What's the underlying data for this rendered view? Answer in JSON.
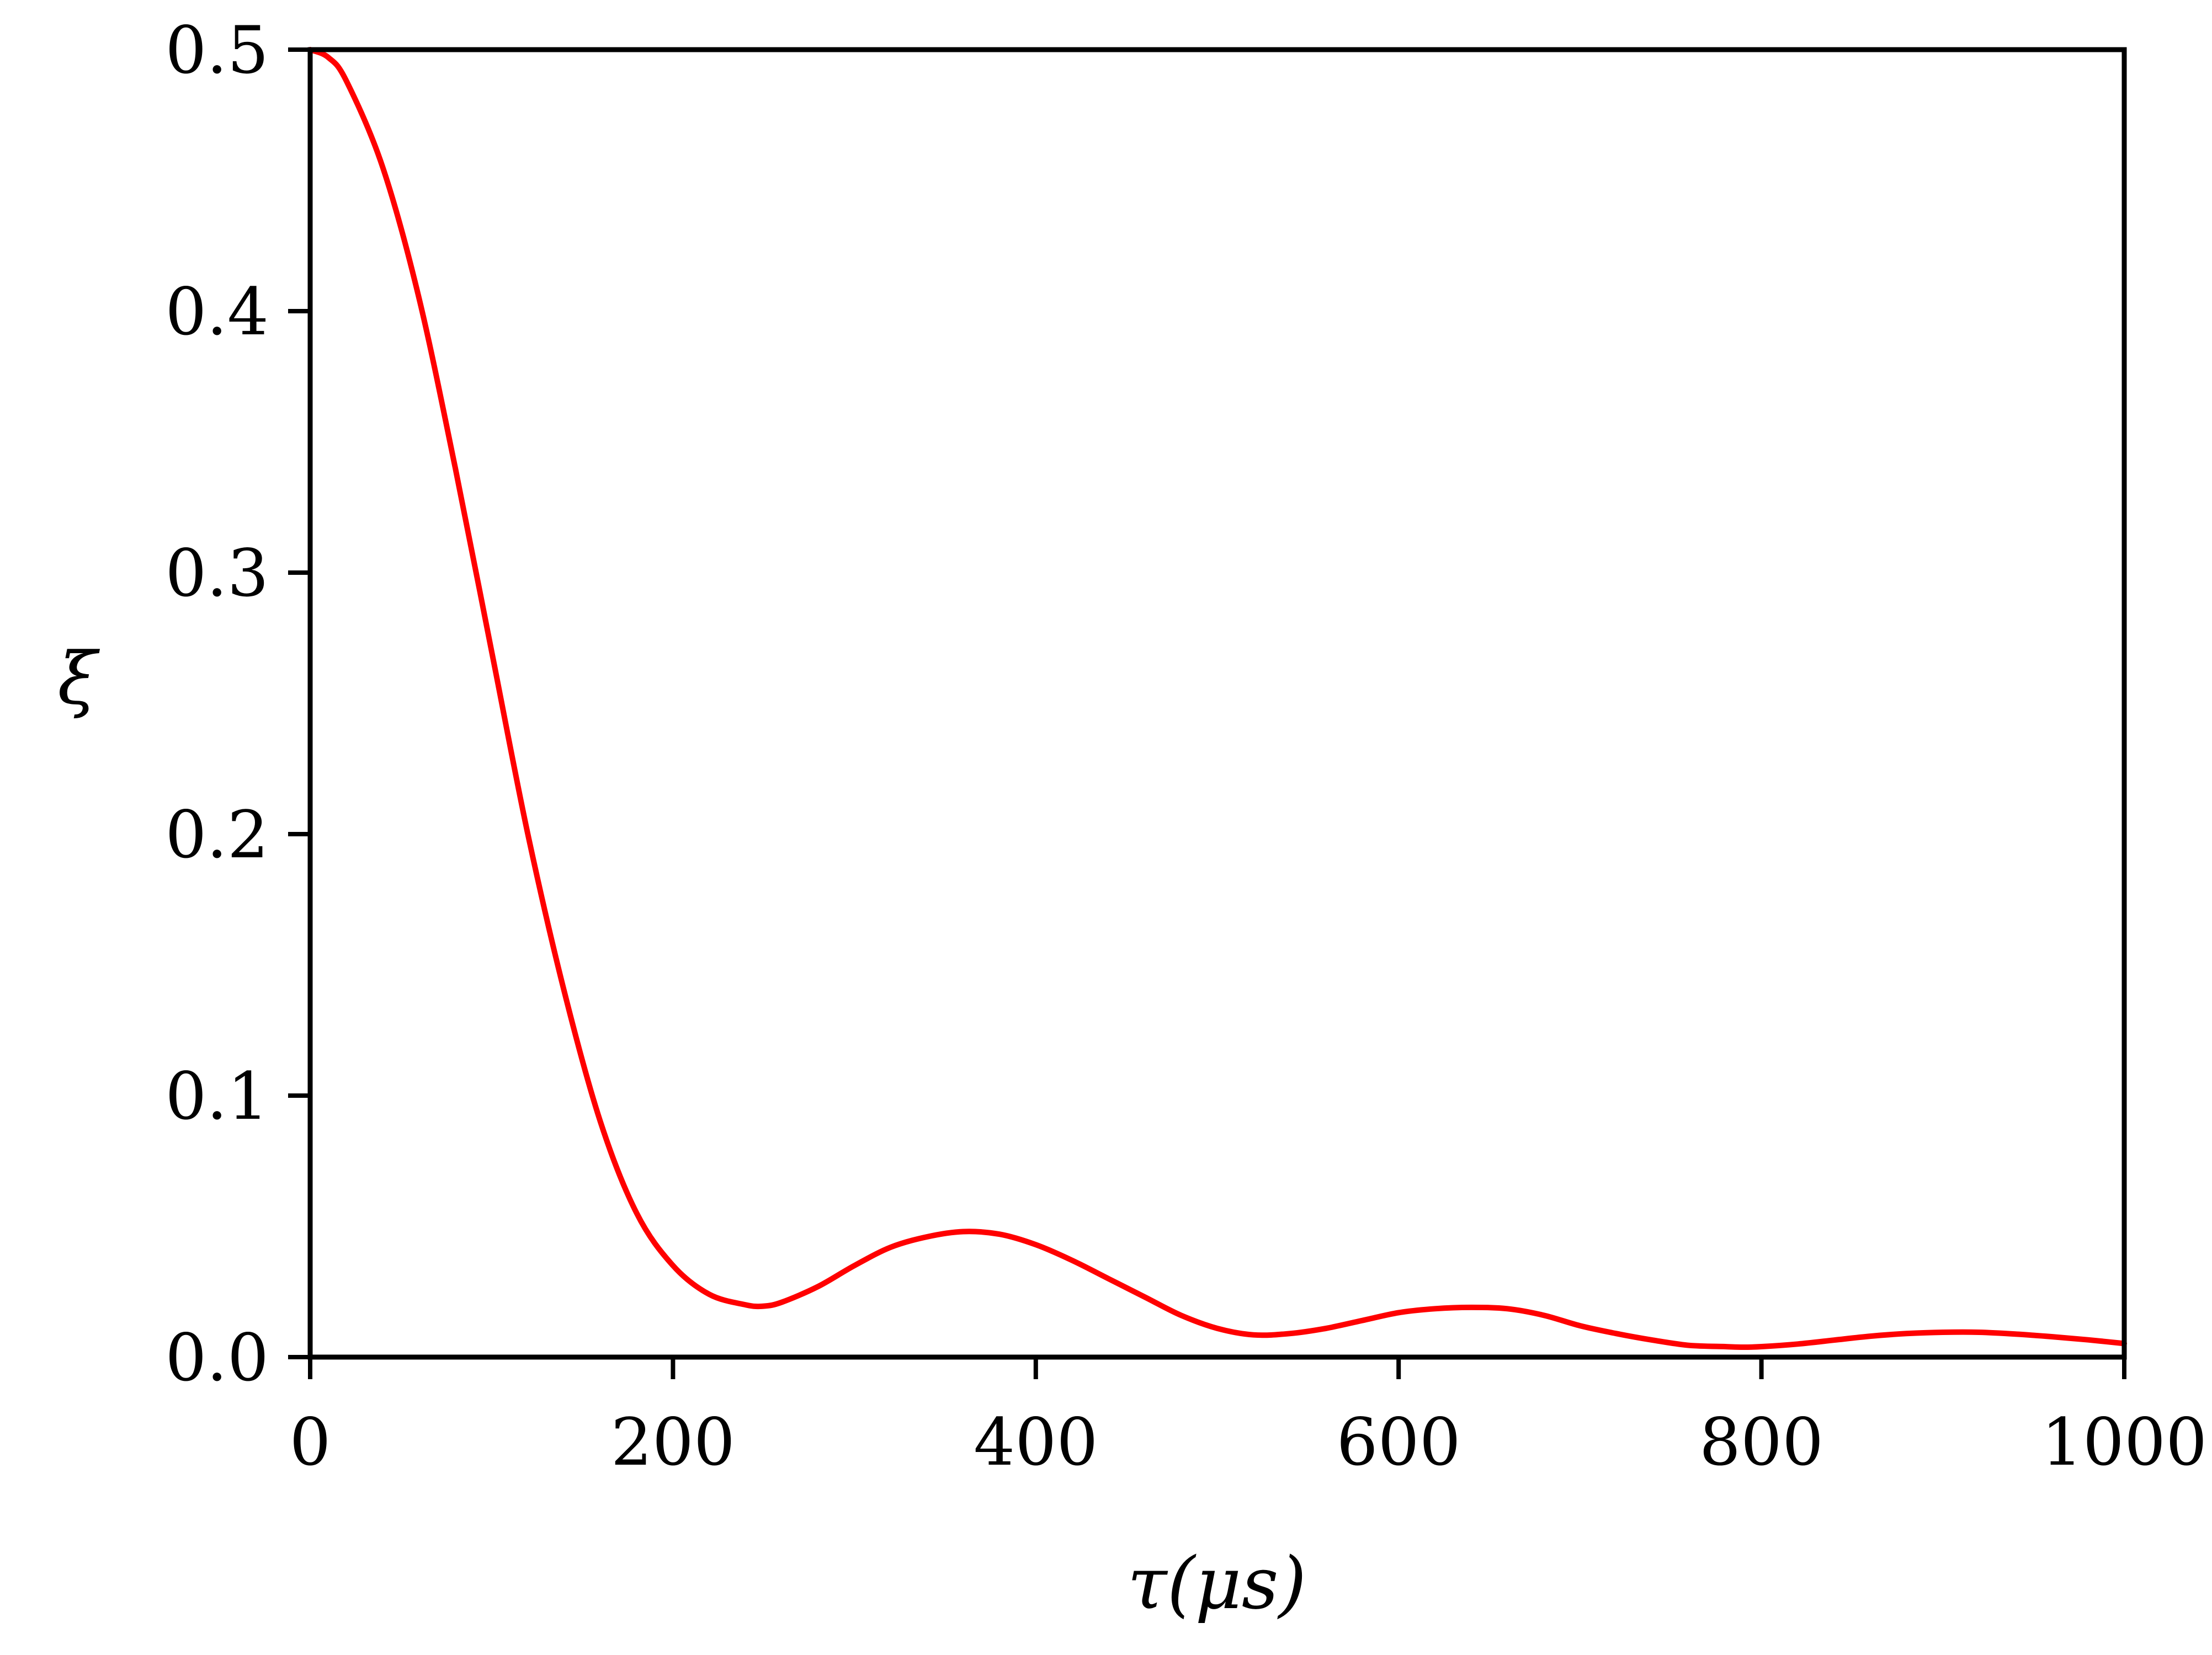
{
  "chart_data": {
    "type": "line",
    "xlabel": "τ(μs)",
    "ylabel": "ξ",
    "xlim": [
      0,
      1000
    ],
    "ylim": [
      0,
      0.5
    ],
    "xticks": [
      "0",
      "200",
      "400",
      "600",
      "800",
      "1000"
    ],
    "yticks": [
      "0.0",
      "0.1",
      "0.2",
      "0.3",
      "0.4",
      "0.5"
    ],
    "grid": false,
    "series": [
      {
        "color": "#ff0000",
        "x": [
          0,
          10,
          20,
          40,
          60,
          80,
          100,
          120,
          140,
          160,
          180,
          200,
          220,
          240,
          250,
          260,
          280,
          300,
          320,
          340,
          360,
          380,
          400,
          420,
          440,
          460,
          480,
          500,
          520,
          540,
          560,
          580,
          600,
          620,
          640,
          660,
          680,
          700,
          720,
          740,
          760,
          780,
          790,
          800,
          820,
          840,
          860,
          880,
          900,
          920,
          940,
          960,
          980,
          1000
        ],
        "y": [
          0.5,
          0.497,
          0.488,
          0.455,
          0.405,
          0.34,
          0.27,
          0.2,
          0.14,
          0.09,
          0.055,
          0.035,
          0.024,
          0.02,
          0.0195,
          0.021,
          0.027,
          0.035,
          0.042,
          0.046,
          0.048,
          0.047,
          0.043,
          0.037,
          0.03,
          0.023,
          0.016,
          0.011,
          0.0085,
          0.009,
          0.011,
          0.014,
          0.017,
          0.0185,
          0.019,
          0.0185,
          0.016,
          0.012,
          0.009,
          0.0065,
          0.0045,
          0.004,
          0.0038,
          0.004,
          0.005,
          0.0065,
          0.008,
          0.009,
          0.0095,
          0.0095,
          0.0088,
          0.0078,
          0.0066,
          0.0052
        ]
      }
    ]
  }
}
